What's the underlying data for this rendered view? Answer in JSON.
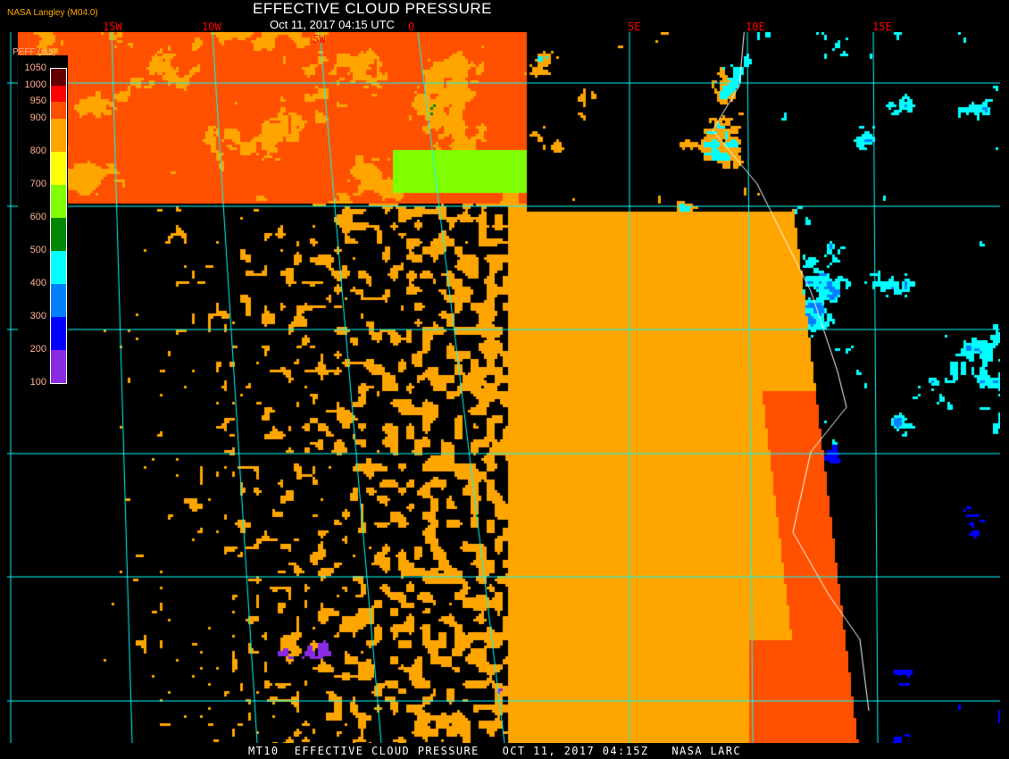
{
  "header": {
    "title": "EFFECTIVE CLOUD PRESSURE",
    "subtitle": "Oct 11, 2017 04:15 UTC",
    "brand": "NASA Langley (M04.0)"
  },
  "longitude_labels": [
    "15W",
    "10W",
    "5W",
    "0",
    "5E",
    "10E",
    "15E"
  ],
  "legend": {
    "title": "PEFF (mb)",
    "ticks": [
      "1050",
      "1000",
      "950",
      "900",
      "800",
      "700",
      "600",
      "500",
      "400",
      "300",
      "200",
      "100"
    ],
    "bins": [
      {
        "range": "1000-1050",
        "color": "#640000"
      },
      {
        "range": "950-1000",
        "color": "#ff0000"
      },
      {
        "range": "900-950",
        "color": "#ff5000"
      },
      {
        "range": "800-900",
        "color": "#ffa500"
      },
      {
        "range": "700-800",
        "color": "#ffff00"
      },
      {
        "range": "600-700",
        "color": "#80ff00"
      },
      {
        "range": "500-600",
        "color": "#008800"
      },
      {
        "range": "400-500",
        "color": "#00ffff"
      },
      {
        "range": "300-400",
        "color": "#0080ff"
      },
      {
        "range": "200-300",
        "color": "#0000ff"
      },
      {
        "range": "100-200",
        "color": "#8a2be2"
      }
    ]
  },
  "colors": {
    "gridline": "#00ffff",
    "coastline": "#ffffff",
    "clear_sky": "#000000"
  },
  "footer": "MT10  EFFECTIVE CLOUD PRESSURE   OCT 11, 2017 04:15Z   NASA LARC"
}
